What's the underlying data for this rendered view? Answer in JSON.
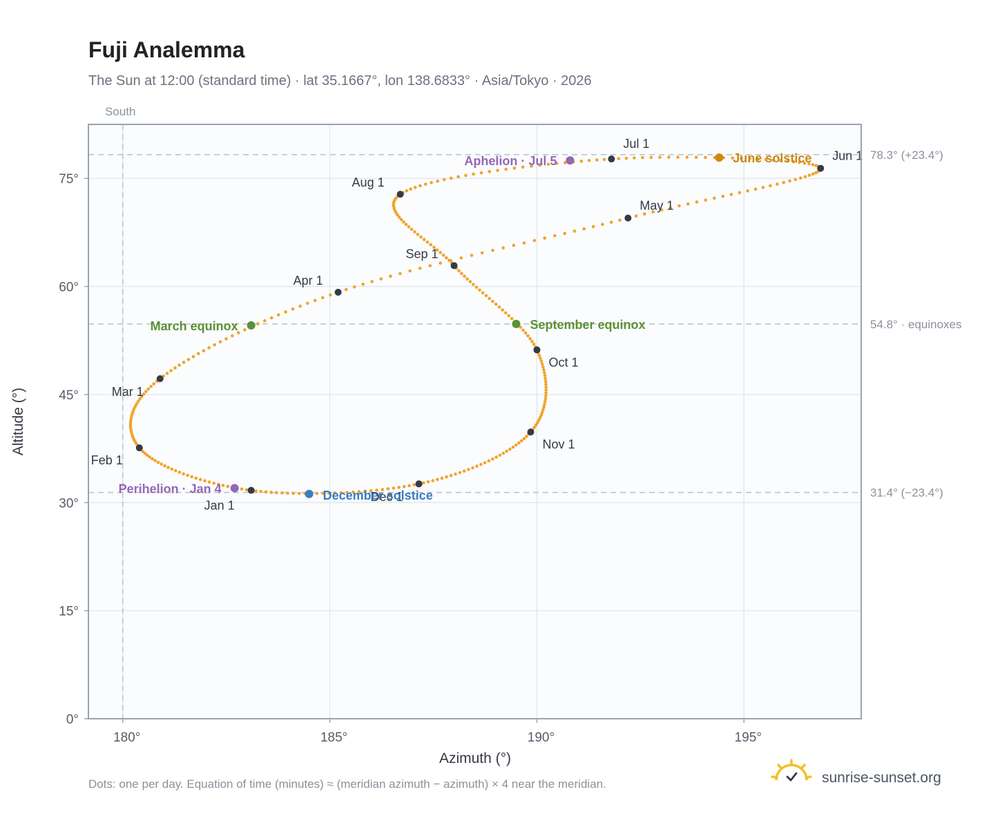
{
  "title": "Fuji Analemma",
  "subtitle": "The Sun at 12:00 (standard time) · lat 35.1667°, lon 138.6833° · Asia/Tokyo · 2026",
  "south_label": "South",
  "footnote": "Dots: one per day. Equation of time (minutes) ≈ (meridian azimuth − azimuth) × 4 near the meridian.",
  "brand": {
    "name": "sunrise-sunset.org",
    "icon": "sun-check-icon"
  },
  "colors": {
    "path": "#f0a42a",
    "month_dot": "#343a46",
    "equinox": "#5c9135",
    "june_solstice": "#c98a12",
    "december_solstice": "#3b7bbf",
    "perihelion_aphelion": "#9467b5",
    "plot_bg": "#fafcfe",
    "grid": "#e4e8ee",
    "frame": "#9aa3af",
    "ref_line": "#b9c0c9",
    "brand_sun": "#f3bf2a"
  },
  "chart_data": {
    "type": "scatter",
    "xlabel": "Azimuth (°)",
    "ylabel": "Altitude (°)",
    "xlim": [
      179.17,
      197.83
    ],
    "ylim": [
      0,
      82.5
    ],
    "xticks": [
      180,
      185,
      190,
      195
    ],
    "xtick_labels": [
      "180°",
      "185°",
      "190°",
      "195°"
    ],
    "yticks": [
      0,
      15,
      30,
      45,
      60,
      75
    ],
    "ytick_labels": [
      "0°",
      "15°",
      "30°",
      "45°",
      "60°",
      "75°"
    ],
    "grid": true,
    "series": [
      {
        "points": [
          [
            183.1,
            31.7
          ],
          [
            180.4,
            37.6
          ],
          [
            180.9,
            47.2
          ],
          [
            185.2,
            59.2
          ],
          [
            192.2,
            69.5
          ],
          [
            196.85,
            76.4
          ],
          [
            191.8,
            77.7
          ],
          [
            186.7,
            72.8
          ],
          [
            188.0,
            62.9
          ],
          [
            190.0,
            51.2
          ],
          [
            189.85,
            39.8
          ],
          [
            187.15,
            32.6
          ]
        ]
      }
    ],
    "month_points": [
      {
        "label": "Jan 1",
        "x": 183.1,
        "y": 31.7
      },
      {
        "label": "Feb 1",
        "x": 180.4,
        "y": 37.6
      },
      {
        "label": "Mar 1",
        "x": 180.9,
        "y": 47.2
      },
      {
        "label": "Apr 1",
        "x": 185.2,
        "y": 59.2
      },
      {
        "label": "May 1",
        "x": 192.2,
        "y": 69.5
      },
      {
        "label": "Jun 1",
        "x": 196.85,
        "y": 76.4
      },
      {
        "label": "Jul 1",
        "x": 191.8,
        "y": 77.7
      },
      {
        "label": "Aug 1",
        "x": 186.7,
        "y": 72.8
      },
      {
        "label": "Sep 1",
        "x": 188.0,
        "y": 62.9
      },
      {
        "label": "Oct 1",
        "x": 190.0,
        "y": 51.2
      },
      {
        "label": "Nov 1",
        "x": 189.85,
        "y": 39.8
      },
      {
        "label": "Dec 1",
        "x": 187.15,
        "y": 32.6
      }
    ],
    "events": [
      {
        "label": "Perihelion · Jan 4",
        "x": 182.7,
        "y": 32.0,
        "color_key": "perihelion_aphelion"
      },
      {
        "label": "March equinox",
        "x": 183.1,
        "y": 54.6,
        "color_key": "equinox"
      },
      {
        "label": "June solstice",
        "x": 194.4,
        "y": 77.9,
        "color_key": "june_solstice"
      },
      {
        "label": "Aphelion · Jul 5",
        "x": 190.8,
        "y": 77.5,
        "color_key": "perihelion_aphelion"
      },
      {
        "label": "September equinox",
        "x": 189.5,
        "y": 54.8,
        "color_key": "equinox"
      },
      {
        "label": "December solstice",
        "x": 184.5,
        "y": 31.2,
        "color_key": "december_solstice"
      }
    ],
    "reference_lines": [
      {
        "y": 78.3,
        "label": "78.3° (+23.4°)"
      },
      {
        "y": 54.8,
        "label": "54.8° · equinoxes"
      },
      {
        "y": 31.4,
        "label": "31.4° (−23.4°)"
      }
    ],
    "meridian_azimuth": 180
  }
}
